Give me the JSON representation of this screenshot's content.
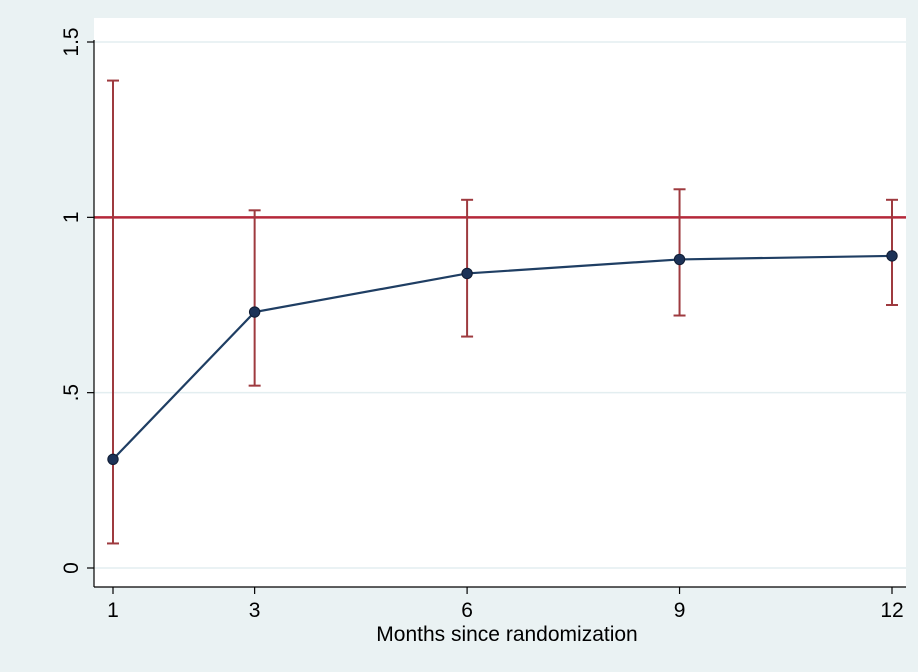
{
  "chart_data": {
    "type": "line",
    "title": "",
    "xlabel": "Months since randomization",
    "ylabel": "",
    "x": [
      1,
      3,
      6,
      9,
      12
    ],
    "x_ticks": [
      {
        "value": 1,
        "label": "1"
      },
      {
        "value": 3,
        "label": "3"
      },
      {
        "value": 6,
        "label": "6"
      },
      {
        "value": 9,
        "label": "9"
      },
      {
        "value": 12,
        "label": "12"
      }
    ],
    "y_ticks": [
      {
        "value": 0,
        "label": "0"
      },
      {
        "value": 0.5,
        "label": ".5"
      },
      {
        "value": 1,
        "label": "1"
      },
      {
        "value": 1.5,
        "label": "1.5"
      }
    ],
    "xlim": [
      1,
      12
    ],
    "ylim": [
      0,
      1.5
    ],
    "grid": "horizontal",
    "reference_line": {
      "y": 1,
      "color": "#b5283a"
    },
    "series": [
      {
        "values": [
          0.31,
          0.73,
          0.84,
          0.88,
          0.89
        ],
        "ci_lower": [
          0.07,
          0.52,
          0.66,
          0.72,
          0.75
        ],
        "ci_upper": [
          1.39,
          1.02,
          1.05,
          1.08,
          1.05
        ],
        "line_color": "#1f3e63",
        "marker_color": "#1c3257",
        "errorbar_color": "#9e3a3f"
      }
    ],
    "colors": {
      "background": "#eaf2f3",
      "plot_background": "#ffffff",
      "grid": "#e3eef0"
    }
  }
}
